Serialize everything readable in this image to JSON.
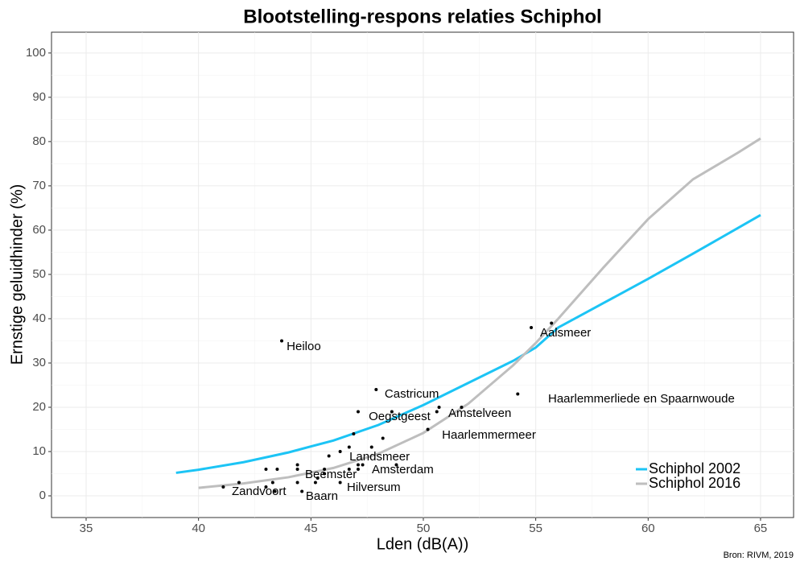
{
  "chart_data": {
    "type": "scatter",
    "title": "Blootstelling-respons relaties Schiphol",
    "x_label": "Lden (dB(A))",
    "y_label": "Ernstige geluidhinder (%)",
    "caption": "Bron: RIVM, 2019",
    "xlim": [
      33.46,
      66.47
    ],
    "ylim": [
      -4.9,
      104.7
    ],
    "xticks": [
      35,
      40,
      45,
      50,
      55,
      60,
      65
    ],
    "yticks": [
      0,
      10,
      20,
      30,
      40,
      50,
      60,
      70,
      80,
      90,
      100
    ],
    "grid": true,
    "legend": "bottom-right",
    "points": {
      "color": "#000000",
      "x": [
        43.7,
        54.8,
        55.7,
        54.2,
        47.9,
        47.1,
        48.6,
        50.6,
        50.7,
        51.7,
        50.2,
        46.9,
        48.2,
        46.7,
        47.7,
        46.3,
        45.8,
        47.1,
        47.3,
        48.8,
        47.1,
        46.7,
        44.4,
        44.4,
        43.5,
        43.0,
        45.6,
        45.6,
        41.1,
        41.8,
        43.0,
        43.3,
        43.4,
        44.4,
        44.6,
        45.2,
        46.3,
        45.3
      ],
      "y": [
        35,
        38,
        39,
        23,
        24,
        19,
        19,
        19,
        20,
        20,
        15,
        14,
        13,
        11,
        11,
        10,
        9,
        7,
        7,
        7,
        6,
        6,
        7,
        6,
        6,
        6,
        6,
        5,
        2,
        3,
        2,
        3,
        1,
        3,
        1,
        3,
        3,
        4
      ]
    },
    "series": [
      {
        "name": "Schiphol 2002",
        "color": "#1cc4f5",
        "x": [
          39,
          40,
          42,
          44,
          46,
          48,
          50,
          52,
          54,
          55,
          56,
          58,
          60,
          62,
          64,
          65
        ],
        "values": [
          5.2,
          5.9,
          7.6,
          9.8,
          12.5,
          16,
          20.5,
          25.5,
          30.5,
          33.5,
          38,
          43.5,
          49,
          54.7,
          60.5,
          63.4
        ]
      },
      {
        "name": "Schiphol 2016",
        "color": "#bebebe",
        "x": [
          40,
          42,
          44,
          46,
          48,
          50,
          52,
          54,
          55,
          56,
          58,
          60,
          62,
          64,
          65
        ],
        "values": [
          1.8,
          2.8,
          4.2,
          6.3,
          9.5,
          14.2,
          20.8,
          29.5,
          34.5,
          40,
          51.5,
          62.5,
          71.5,
          77.5,
          80.7
        ]
      }
    ],
    "annotations": [
      {
        "text": "Heiloo",
        "x": 43.92,
        "y": 33.6
      },
      {
        "text": "Aalsmeer",
        "x": 55.19,
        "y": 36.7
      },
      {
        "text": "Haarlemmerliede en Spaarnwoude",
        "x": 55.55,
        "y": 21.8
      },
      {
        "text": "Castricum",
        "x": 48.28,
        "y": 22.9
      },
      {
        "text": "Oegstgeest",
        "x": 47.57,
        "y": 17.8
      },
      {
        "text": "Amstelveen",
        "x": 51.11,
        "y": 18.5
      },
      {
        "text": "Haarlemmermeer",
        "x": 50.83,
        "y": 13.6
      },
      {
        "text": "Landsmeer",
        "x": 46.71,
        "y": 8.7
      },
      {
        "text": "Amsterdam",
        "x": 47.71,
        "y": 5.8
      },
      {
        "text": "Beemster",
        "x": 44.74,
        "y": 4.7
      },
      {
        "text": "Hilversum",
        "x": 46.6,
        "y": 1.8
      },
      {
        "text": "Zandvoort",
        "x": 41.48,
        "y": 0.9
      },
      {
        "text": "Baarn",
        "x": 44.77,
        "y": -0.2
      }
    ]
  }
}
